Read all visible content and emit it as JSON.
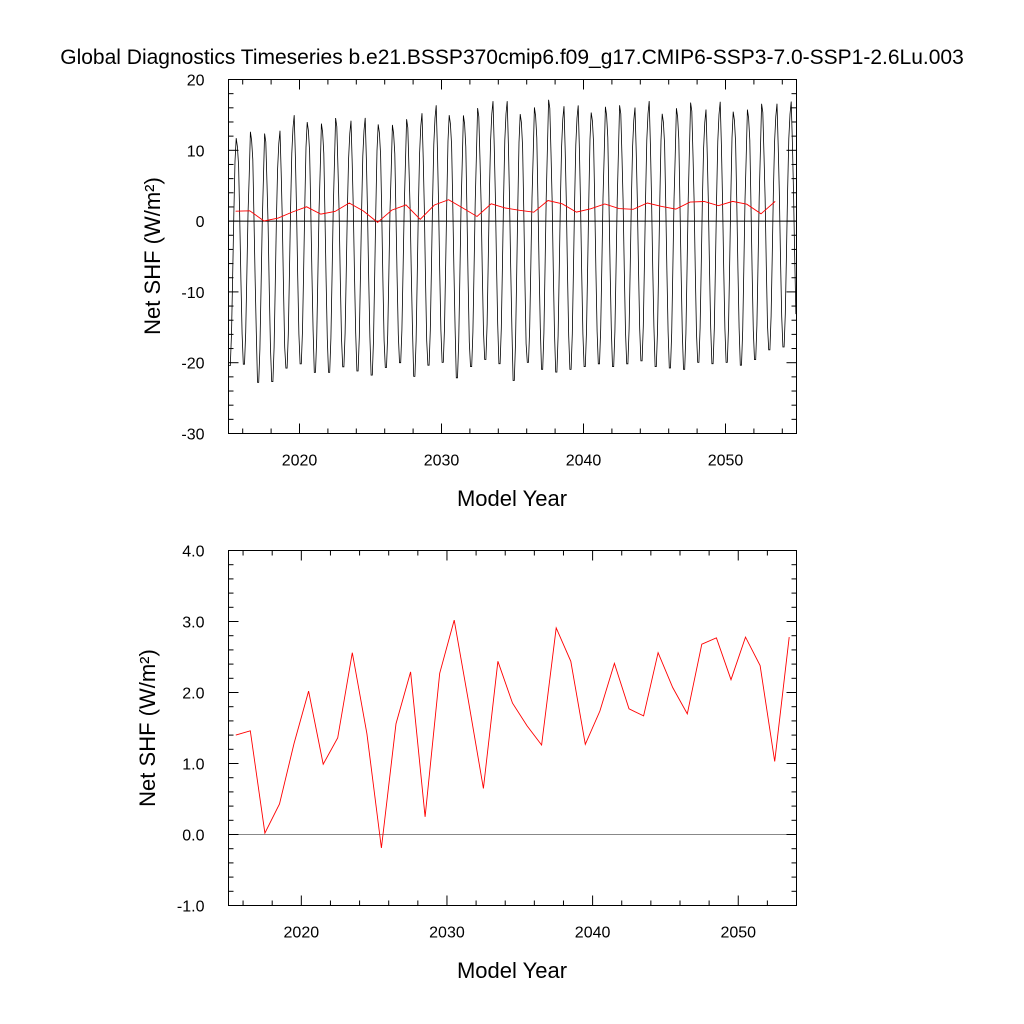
{
  "title": "Global Diagnostics Timeseries b.e21.BSSP370cmip6.f09_g17.CMIP6-SSP3-7.0-SSP1-2.6Lu.003",
  "chart_data": [
    {
      "type": "line",
      "xlabel": "Model Year",
      "ylabel": "Net SHF (W/m²)",
      "xlim": [
        2015,
        2055
      ],
      "ylim": [
        -30,
        20
      ],
      "x_ticks": [
        2020,
        2030,
        2040,
        2050
      ],
      "x_tick_labels": [
        "2020",
        "2030",
        "2040",
        "2050"
      ],
      "y_ticks": [
        -30,
        -20,
        -10,
        0,
        10,
        20
      ],
      "y_tick_labels": [
        "-30",
        "-20",
        "-10",
        "0",
        "10",
        "20"
      ],
      "reference_line": 0,
      "series": [
        {
          "color": "#000000",
          "style": "monthly",
          "x_start": 2015.0417,
          "x_step": 0.0833333,
          "seasonal_max_by_year": [
            13.5,
            13.8,
            13.0,
            14.0,
            15.6,
            15.8,
            15.0,
            15.2,
            15.4,
            15.2,
            15.5,
            14.8,
            15.0,
            16.5,
            17.0,
            16.8,
            16.2,
            16.6,
            18.2,
            17.6,
            17.0,
            17.3,
            17.8,
            17.5,
            17.0,
            17.2,
            17.4,
            17.0,
            17.3,
            17.6,
            17.0,
            17.2,
            17.4,
            17.0,
            17.5,
            17.3,
            17.0,
            17.2,
            17.8,
            17.5
          ],
          "seasonal_min_by_year": [
            -21.0,
            -20.8,
            -23.4,
            -23.3,
            -21.4,
            -20.8,
            -22.0,
            -22.0,
            -21.2,
            -21.8,
            -22.4,
            -21.3,
            -20.6,
            -22.6,
            -21.0,
            -20.6,
            -22.8,
            -21.2,
            -20.2,
            -20.8,
            -23.2,
            -20.6,
            -21.6,
            -22.0,
            -21.6,
            -21.2,
            -20.8,
            -21.2,
            -20.8,
            -20.4,
            -21.2,
            -21.4,
            -21.6,
            -20.6,
            -20.8,
            -20.6,
            -21.0,
            -20.2,
            -18.8,
            -18.4
          ]
        },
        {
          "color": "#ff0000",
          "style": "annual-mean",
          "x": [
            2015.5,
            2016.5,
            2017.5,
            2018.5,
            2019.5,
            2020.5,
            2021.5,
            2022.5,
            2023.5,
            2024.5,
            2025.5,
            2026.5,
            2027.5,
            2028.5,
            2029.5,
            2030.5,
            2031.5,
            2032.5,
            2033.5,
            2034.5,
            2035.5,
            2036.5,
            2037.5,
            2038.5,
            2039.5,
            2040.5,
            2041.5,
            2042.5,
            2043.5,
            2044.5,
            2045.5,
            2046.5,
            2047.5,
            2048.5,
            2049.5,
            2050.5,
            2051.5,
            2052.5,
            2053.5
          ],
          "values": [
            1.4,
            1.46,
            0.02,
            0.43,
            1.28,
            2.02,
            0.99,
            1.36,
            2.56,
            1.42,
            -0.19,
            1.56,
            2.29,
            0.25,
            2.27,
            3.02,
            1.85,
            0.65,
            2.44,
            1.85,
            1.53,
            1.26,
            2.91,
            2.44,
            1.27,
            1.74,
            2.41,
            1.77,
            1.67,
            2.56,
            2.07,
            1.7,
            2.68,
            2.77,
            2.18,
            2.78,
            2.38,
            1.03,
            2.78
          ]
        }
      ]
    },
    {
      "type": "line",
      "xlabel": "Model Year",
      "ylabel": "Net SHF (W/m²)",
      "xlim": [
        2015,
        2054
      ],
      "ylim": [
        -1,
        4
      ],
      "x_ticks": [
        2020,
        2030,
        2040,
        2050
      ],
      "x_tick_labels": [
        "2020",
        "2030",
        "2040",
        "2050"
      ],
      "y_ticks": [
        -1,
        0,
        1,
        2,
        3,
        4
      ],
      "y_tick_labels": [
        "-1.0",
        "0.0",
        "1.0",
        "2.0",
        "3.0",
        "4.0"
      ],
      "reference_line": 0,
      "series": [
        {
          "color": "#ff0000",
          "style": "annual-mean",
          "x": [
            2015.5,
            2016.5,
            2017.5,
            2018.5,
            2019.5,
            2020.5,
            2021.5,
            2022.5,
            2023.5,
            2024.5,
            2025.5,
            2026.5,
            2027.5,
            2028.5,
            2029.5,
            2030.5,
            2031.5,
            2032.5,
            2033.5,
            2034.5,
            2035.5,
            2036.5,
            2037.5,
            2038.5,
            2039.5,
            2040.5,
            2041.5,
            2042.5,
            2043.5,
            2044.5,
            2045.5,
            2046.5,
            2047.5,
            2048.5,
            2049.5,
            2050.5,
            2051.5,
            2052.5,
            2053.5
          ],
          "values": [
            1.4,
            1.46,
            0.02,
            0.43,
            1.28,
            2.02,
            0.99,
            1.36,
            2.56,
            1.42,
            -0.19,
            1.56,
            2.29,
            0.25,
            2.27,
            3.02,
            1.85,
            0.65,
            2.44,
            1.85,
            1.53,
            1.26,
            2.91,
            2.44,
            1.27,
            1.74,
            2.41,
            1.77,
            1.67,
            2.56,
            2.07,
            1.7,
            2.68,
            2.77,
            2.18,
            2.78,
            2.38,
            1.03,
            2.78
          ]
        }
      ]
    }
  ]
}
